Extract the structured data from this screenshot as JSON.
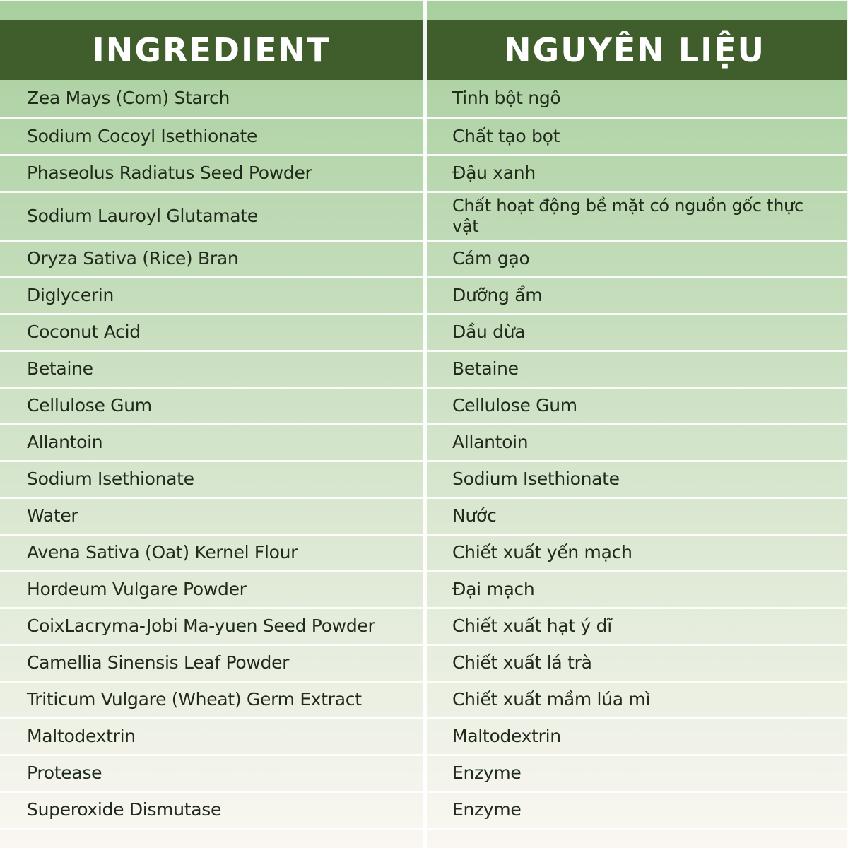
{
  "table": {
    "header": {
      "col1": "INGREDIENT",
      "col2": "NGUYÊN LIỆU"
    },
    "rows": [
      {
        "ingredient": "Zea Mays (Com) Starch",
        "translation": "Tinh bột ngô",
        "lines": 1
      },
      {
        "ingredient": "Sodium Cocoyl Isethionate",
        "translation": "Chất tạo bọt",
        "lines": 1
      },
      {
        "ingredient": "Phaseolus Radiatus Seed Powder",
        "translation": "Đậu xanh",
        "lines": 1
      },
      {
        "ingredient": "Sodium Lauroyl Glutamate",
        "translation": "Chất hoạt động bề mặt có nguồn gốc thực vật",
        "lines": 2
      },
      {
        "ingredient": "Oryza Sativa (Rice) Bran",
        "translation": "Cám gạo",
        "lines": 1
      },
      {
        "ingredient": "Diglycerin",
        "translation": "Dưỡng ẩm",
        "lines": 1
      },
      {
        "ingredient": "Coconut Acid",
        "translation": "Dầu dừa",
        "lines": 1
      },
      {
        "ingredient": "Betaine",
        "translation": "Betaine",
        "lines": 1
      },
      {
        "ingredient": "Cellulose Gum",
        "translation": "Cellulose Gum",
        "lines": 1
      },
      {
        "ingredient": "Allantoin",
        "translation": "Allantoin",
        "lines": 1
      },
      {
        "ingredient": "Sodium Isethionate",
        "translation": "Sodium Isethionate",
        "lines": 1
      },
      {
        "ingredient": "Water",
        "translation": "Nước",
        "lines": 1
      },
      {
        "ingredient": "Avena Sativa (Oat) Kernel Flour",
        "translation": "Chiết xuất yến mạch",
        "lines": 1
      },
      {
        "ingredient": "Hordeum Vulgare Powder",
        "translation": "Đại mạch",
        "lines": 1
      },
      {
        "ingredient": "CoixLacryma-Jobi Ma-yuen Seed Powder",
        "translation": "Chiết xuất hạt ý dĩ",
        "lines": 1
      },
      {
        "ingredient": "Camellia Sinensis Leaf Powder",
        "translation": "Chiết xuất lá trà",
        "lines": 1
      },
      {
        "ingredient": "Triticum Vulgare (Wheat) Germ Extract",
        "translation": "Chiết xuất mầm lúa mì",
        "lines": 1
      },
      {
        "ingredient": "Maltodextrin",
        "translation": "Maltodextrin",
        "lines": 1
      },
      {
        "ingredient": "Protease",
        "translation": "Enzyme",
        "lines": 1
      },
      {
        "ingredient": "Superoxide Dismutase",
        "translation": "Enzyme",
        "lines": 1
      }
    ],
    "colors": {
      "header_background": "#3f5e2b",
      "header_text": "#ffffff",
      "body_gradient_top": "#a8cf9e",
      "body_gradient_bottom": "#faf7f2",
      "separator": "#fdfefc",
      "cell_text": "#212b1c"
    }
  }
}
